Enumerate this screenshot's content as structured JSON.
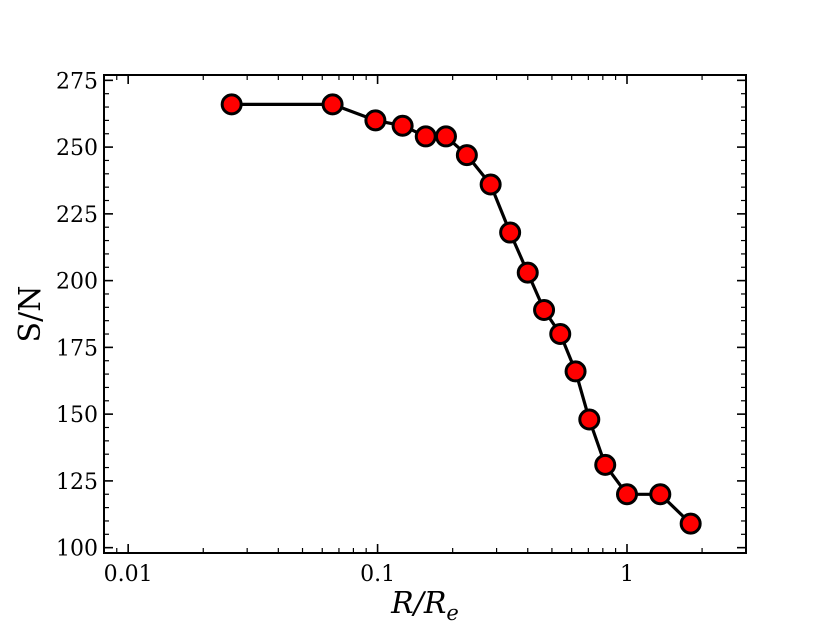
{
  "chart_data": {
    "type": "line",
    "x_scale": "log",
    "xlim": [
      0.008,
      3.0
    ],
    "ylim": [
      98,
      277
    ],
    "x_ticks": [
      {
        "value": 0.01,
        "label": "0.01"
      },
      {
        "value": 0.1,
        "label": "0.1"
      },
      {
        "value": 1,
        "label": "1"
      }
    ],
    "y_ticks": [
      {
        "value": 100,
        "label": "100"
      },
      {
        "value": 125,
        "label": "125"
      },
      {
        "value": 150,
        "label": "150"
      },
      {
        "value": 175,
        "label": "175"
      },
      {
        "value": 200,
        "label": "200"
      },
      {
        "value": 225,
        "label": "225"
      },
      {
        "value": 250,
        "label": "250"
      },
      {
        "value": 275,
        "label": "275"
      }
    ],
    "y_minor_step": 5,
    "xlabel": {
      "main": "R/R",
      "sub": "e"
    },
    "ylabel": "S/N",
    "grid": false,
    "series": [
      {
        "marker_color": "#ff0000",
        "line_color": "#000000",
        "x": [
          0.026,
          0.066,
          0.098,
          0.126,
          0.156,
          0.188,
          0.228,
          0.284,
          0.34,
          0.4,
          0.465,
          0.54,
          0.622,
          0.706,
          0.818,
          1.0,
          1.36,
          1.8
        ],
        "y": [
          266,
          266,
          260,
          258,
          254,
          254,
          247,
          236,
          218,
          203,
          189,
          180,
          166,
          148,
          131,
          120,
          120,
          109
        ]
      }
    ]
  }
}
